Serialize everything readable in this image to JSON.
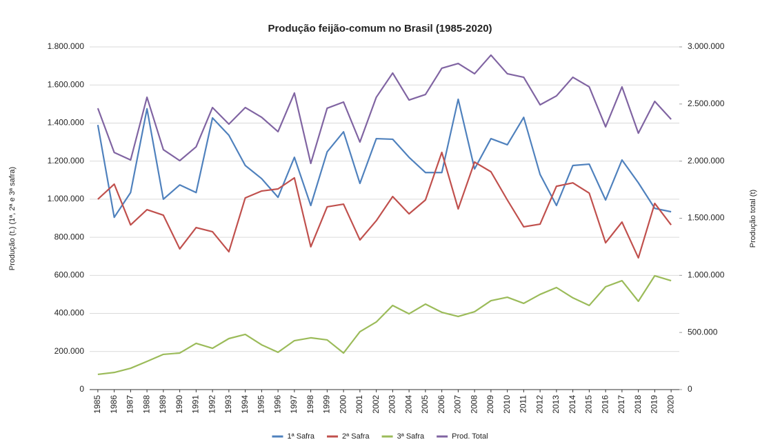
{
  "chart_data": {
    "type": "line",
    "title": "Produção feijão-comum no Brasil (1985-2020)",
    "y_label": "Produção (t.) (1ª, 2ª e 3ª safra)",
    "y2_label": "Produção total (t)",
    "categories": [
      "1985",
      "1986",
      "1987",
      "1988",
      "1989",
      "1990",
      "1991",
      "1992",
      "1993",
      "1994",
      "1995",
      "1996",
      "1997",
      "1998",
      "1999",
      "2000",
      "2001",
      "2002",
      "2003",
      "2004",
      "2005",
      "2006",
      "2007",
      "2008",
      "2009",
      "2010",
      "2011",
      "2012",
      "2013",
      "2014",
      "2015",
      "2016",
      "2017",
      "2018",
      "2019",
      "2020"
    ],
    "series": [
      {
        "name": "1ª Safra",
        "color": "#4f81bd",
        "values": [
          1390000,
          905000,
          1035000,
          1475000,
          1000000,
          1075000,
          1035000,
          1427000,
          1336000,
          1177000,
          1108000,
          1010000,
          1220000,
          967000,
          1249000,
          1354000,
          1083000,
          1318000,
          1315000,
          1220000,
          1140000,
          1140000,
          1525000,
          1159000,
          1318000,
          1286000,
          1430000,
          1130000,
          967000,
          1177000,
          1184000,
          996000,
          1206000,
          1086000,
          952000,
          934000
        ]
      },
      {
        "name": "2ª Safra",
        "color": "#c0504d",
        "values": [
          1000000,
          1079000,
          865000,
          945000,
          916000,
          739000,
          851000,
          829000,
          724000,
          1007000,
          1043000,
          1054000,
          1112000,
          750000,
          960000,
          974000,
          786000,
          887000,
          1014000,
          923000,
          996000,
          1246000,
          949000,
          1195000,
          1144000,
          996000,
          855000,
          869000,
          1068000,
          1086000,
          1032000,
          771000,
          880000,
          692000,
          978000,
          865000
        ]
      },
      {
        "name": "3ª Safra",
        "color": "#9bbb59",
        "values": [
          80000,
          90000,
          112000,
          148000,
          185000,
          192000,
          243000,
          217000,
          268000,
          290000,
          235000,
          196000,
          257000,
          272000,
          261000,
          192000,
          304000,
          355000,
          442000,
          398000,
          449000,
          406000,
          384000,
          409000,
          467000,
          485000,
          453000,
          500000,
          536000,
          482000,
          442000,
          540000,
          572000,
          464000,
          598000,
          572000
        ]
      },
      {
        "name": "Prod. Total",
        "color": "#8064a2",
        "axis": "y2",
        "values": [
          2463000,
          2076000,
          2010000,
          2559000,
          2100000,
          2004000,
          2125000,
          2469000,
          2324000,
          2469000,
          2384000,
          2258000,
          2596000,
          1980000,
          2463000,
          2517000,
          2167000,
          2559000,
          2771000,
          2535000,
          2583000,
          2813000,
          2855000,
          2765000,
          2928000,
          2765000,
          2734000,
          2493000,
          2571000,
          2734000,
          2650000,
          2300000,
          2650000,
          2245000,
          2523000,
          2366000
        ]
      }
    ],
    "ylim": [
      0,
      1800000
    ],
    "yticks": [
      0,
      {
        "value": 200000,
        "label": "200.000"
      },
      {
        "value": 400000,
        "label": "400.000"
      },
      {
        "value": 600000,
        "label": "600.000"
      },
      {
        "value": 800000,
        "label": "800.000"
      },
      {
        "value": 1000000,
        "label": "1.000.000"
      },
      {
        "value": 1200000,
        "label": "1.200.000"
      },
      {
        "value": 1400000,
        "label": "1.400.000"
      },
      {
        "value": 1600000,
        "label": "1.600.000"
      },
      {
        "value": 1800000,
        "label": "1.800.000"
      }
    ],
    "y2lim": [
      0,
      3000000
    ],
    "y2ticks": [
      0,
      {
        "value": 500000,
        "label": "500.000"
      },
      {
        "value": 1000000,
        "label": "1.000.000"
      },
      {
        "value": 1500000,
        "label": "1.500.000"
      },
      {
        "value": 2000000,
        "label": "2.000.000"
      },
      {
        "value": 2500000,
        "label": "2.500.000"
      },
      {
        "value": 3000000,
        "label": "3.000.000"
      }
    ],
    "grid": true,
    "legend": "bottom"
  }
}
